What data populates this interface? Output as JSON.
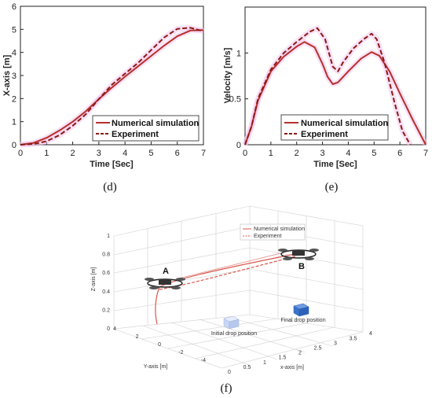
{
  "colors": {
    "simulation": "#b5302a",
    "experiment": "#8b1a12",
    "box_initial": "#c9d7f5",
    "box_final": "#3a73cc"
  },
  "chart_data": [
    {
      "type": "line",
      "panel_label": "(d)",
      "xlabel": "Time [Sec]",
      "ylabel": "X-axis [m]",
      "xlim": [
        0,
        7
      ],
      "ylim": [
        0,
        6
      ],
      "x_ticks": [
        "0",
        "1",
        "2",
        "3",
        "4",
        "5",
        "6",
        "7"
      ],
      "y_ticks": [
        "0",
        "1",
        "2",
        "3",
        "4",
        "5",
        "6"
      ],
      "grid": false,
      "legend_position": "bottom-right",
      "series": [
        {
          "name": "Numerical simulation",
          "style": "solid",
          "x": [
            0,
            0.5,
            1,
            1.5,
            2,
            2.5,
            3,
            3.5,
            4,
            4.5,
            5,
            5.5,
            6,
            6.5,
            7
          ],
          "y": [
            0,
            0.08,
            0.3,
            0.62,
            1.0,
            1.45,
            1.98,
            2.48,
            2.95,
            3.4,
            3.85,
            4.3,
            4.7,
            4.95,
            4.97
          ]
        },
        {
          "name": "Experiment",
          "style": "dashed",
          "x": [
            0,
            0.5,
            1,
            1.5,
            2,
            2.5,
            3,
            3.5,
            4,
            4.5,
            5,
            5.5,
            6,
            6.5,
            7
          ],
          "y": [
            0,
            0.03,
            0.15,
            0.42,
            0.82,
            1.32,
            1.98,
            2.6,
            3.08,
            3.55,
            4.1,
            4.65,
            5.02,
            5.07,
            4.92
          ]
        }
      ]
    },
    {
      "type": "line",
      "panel_label": "(e)",
      "xlabel": "Time [Sec]",
      "ylabel": "Velocity [m/s]",
      "xlim": [
        0,
        7
      ],
      "ylim": [
        0,
        1.5
      ],
      "x_ticks": [
        "0",
        "1",
        "2",
        "3",
        "4",
        "5",
        "6",
        "7"
      ],
      "y_ticks": [
        "0",
        "0.5",
        "1"
      ],
      "grid": false,
      "legend_position": "bottom-right",
      "series": [
        {
          "name": "Numerical simulation",
          "style": "solid",
          "x": [
            0,
            0.25,
            0.5,
            1,
            1.5,
            2,
            2.3,
            2.7,
            3,
            3.2,
            3.4,
            3.6,
            4,
            4.5,
            4.9,
            5.2,
            5.6,
            6,
            6.5,
            7
          ],
          "y": [
            0,
            0.2,
            0.48,
            0.8,
            0.96,
            1.07,
            1.12,
            1.06,
            0.88,
            0.74,
            0.66,
            0.68,
            0.8,
            0.94,
            1.01,
            0.97,
            0.8,
            0.56,
            0.27,
            0
          ]
        },
        {
          "name": "Experiment",
          "style": "dashed",
          "x": [
            0,
            0.25,
            0.5,
            1,
            1.5,
            2,
            2.5,
            2.8,
            3.1,
            3.4,
            3.6,
            3.8,
            4.2,
            4.6,
            4.9,
            5.1,
            5.4,
            5.8,
            6.1,
            6.4
          ],
          "y": [
            0,
            0.2,
            0.5,
            0.82,
            1.0,
            1.12,
            1.23,
            1.27,
            1.15,
            0.85,
            0.8,
            0.9,
            1.05,
            1.15,
            1.21,
            1.15,
            0.9,
            0.45,
            0.15,
            0
          ]
        }
      ]
    },
    {
      "type": "line3d",
      "panel_label": "(f)",
      "xlabel": "x-axis [m]",
      "ylabel": "Y-axis [m]",
      "zlabel": "Z-axis [m]",
      "x_ticks": [
        "0",
        "0.5",
        "1",
        "1.5",
        "2",
        "2.5",
        "3",
        "3.5",
        "4"
      ],
      "y_ticks": [
        "4",
        "2",
        "0",
        "-2",
        "-4"
      ],
      "z_ticks": [
        "0",
        "0.2",
        "0.4",
        "0.6",
        "0.8",
        "1"
      ],
      "legend_position": "top",
      "series": [
        {
          "name": "Numerical simulation",
          "style": "solid"
        },
        {
          "name": "Experiment",
          "style": "dashed"
        }
      ],
      "annotations": {
        "point_a": "A",
        "point_b": "B",
        "initial": "Initial drop position",
        "final": "Final drop position"
      }
    }
  ]
}
